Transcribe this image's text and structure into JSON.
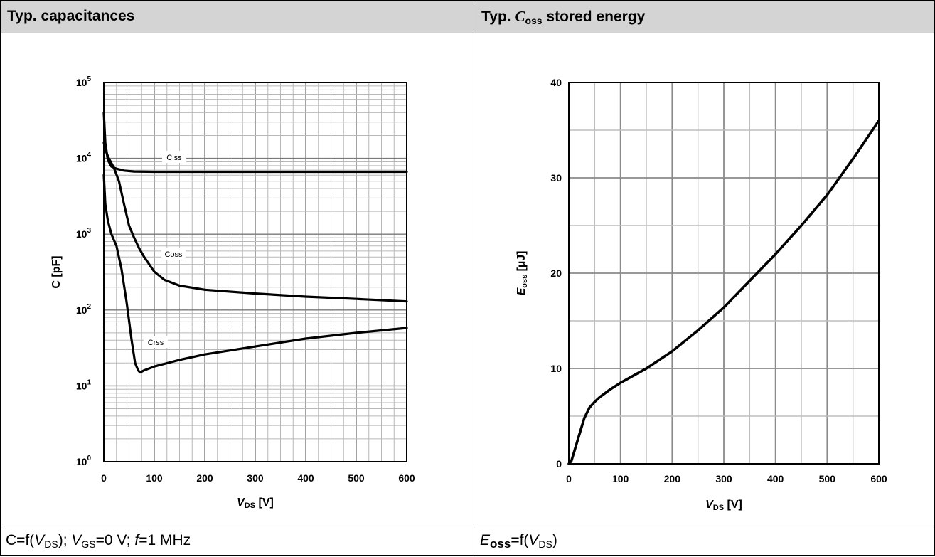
{
  "panels": [
    {
      "title_prefix": "Typ. capacitances",
      "footer": {
        "p1": "C=f(",
        "v1": "V",
        "s1": "DS",
        "p2": "); ",
        "v2": "V",
        "s2": "GS",
        "p3": "=0 V; ",
        "v3": "f",
        "p4": "=1 MHz"
      }
    },
    {
      "title_prefix": "Typ. ",
      "title_symbol": "C",
      "title_sub": "oss",
      "title_suffix": " stored energy",
      "footer": {
        "e": "E",
        "esub": "oss",
        "p1": "=f(",
        "v1": "V",
        "s1": "DS",
        "p2": ")"
      }
    }
  ],
  "chart_data": [
    {
      "type": "line",
      "y_scale": "log",
      "xlim": [
        0,
        600
      ],
      "ylim": [
        1,
        100000
      ],
      "x_ticks": [
        "0",
        "100",
        "200",
        "300",
        "400",
        "500",
        "600"
      ],
      "y_ticks": [
        {
          "base": "10",
          "exp": "0"
        },
        {
          "base": "10",
          "exp": "1"
        },
        {
          "base": "10",
          "exp": "2"
        },
        {
          "base": "10",
          "exp": "3"
        },
        {
          "base": "10",
          "exp": "4"
        },
        {
          "base": "10",
          "exp": "5"
        }
      ],
      "xlabel": {
        "main": "V",
        "sub": "DS",
        "unit": " [V]"
      },
      "ylabel": "C  [pF]",
      "grid": true,
      "series": [
        {
          "name": "Ciss",
          "x": [
            0,
            3,
            8,
            15,
            25,
            40,
            60,
            100,
            200,
            300,
            400,
            500,
            600
          ],
          "y": [
            40000,
            16000,
            9500,
            7800,
            7300,
            6900,
            6700,
            6650,
            6650,
            6650,
            6650,
            6650,
            6650
          ]
        },
        {
          "name": "Coss",
          "x": [
            0,
            5,
            10,
            20,
            30,
            40,
            50,
            60,
            70,
            80,
            90,
            100,
            120,
            150,
            200,
            300,
            400,
            500,
            600
          ],
          "y": [
            16000,
            12000,
            10000,
            7500,
            5000,
            2500,
            1300,
            900,
            650,
            500,
            400,
            320,
            250,
            210,
            185,
            165,
            150,
            140,
            130
          ]
        },
        {
          "name": "Crss",
          "x": [
            0,
            3,
            8,
            15,
            25,
            35,
            45,
            55,
            62,
            68,
            72,
            80,
            100,
            150,
            200,
            300,
            400,
            500,
            600
          ],
          "y": [
            6000,
            2500,
            1500,
            1000,
            700,
            350,
            130,
            40,
            20,
            16,
            15,
            16,
            18,
            22,
            26,
            33,
            42,
            50,
            58
          ]
        }
      ]
    },
    {
      "type": "line",
      "xlim": [
        0,
        600
      ],
      "ylim": [
        0,
        40
      ],
      "x_ticks": [
        "0",
        "100",
        "200",
        "300",
        "400",
        "500",
        "600"
      ],
      "y_ticks": [
        "0",
        "10",
        "20",
        "30",
        "40"
      ],
      "xlabel": {
        "main": "V",
        "sub": "DS",
        "unit": " [V]"
      },
      "ylabel": {
        "main": "E",
        "sub": "oss",
        "unit": " [µJ]"
      },
      "grid": true,
      "series": [
        {
          "x": [
            0,
            5,
            10,
            20,
            30,
            40,
            50,
            60,
            80,
            100,
            150,
            200,
            250,
            300,
            350,
            400,
            450,
            500,
            550,
            600
          ],
          "y": [
            0,
            0.3,
            1.2,
            3,
            4.8,
            5.9,
            6.5,
            7,
            7.8,
            8.5,
            10,
            11.8,
            14,
            16.4,
            19.2,
            22,
            25,
            28.2,
            32,
            36
          ]
        }
      ]
    }
  ]
}
